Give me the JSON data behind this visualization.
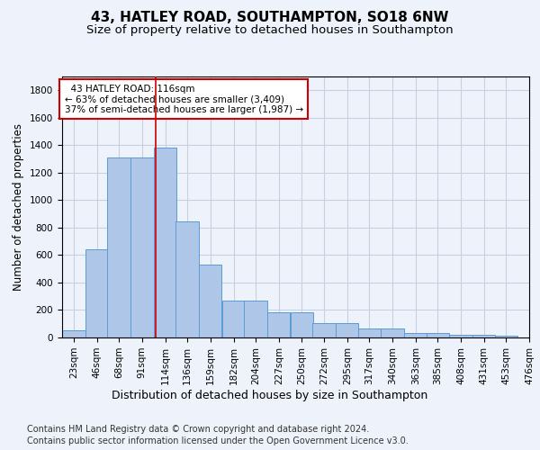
{
  "title_line1": "43, HATLEY ROAD, SOUTHAMPTON, SO18 6NW",
  "title_line2": "Size of property relative to detached houses in Southampton",
  "xlabel": "Distribution of detached houses by size in Southampton",
  "ylabel": "Number of detached properties",
  "footer_line1": "Contains HM Land Registry data © Crown copyright and database right 2024.",
  "footer_line2": "Contains public sector information licensed under the Open Government Licence v3.0.",
  "annotation_line1": "43 HATLEY ROAD: 116sqm",
  "annotation_line2": "← 63% of detached houses are smaller (3,409)",
  "annotation_line3": "37% of semi-detached houses are larger (1,987) →",
  "bar_left_edges": [
    23,
    46,
    68,
    91,
    114,
    136,
    159,
    182,
    204,
    227,
    250,
    272,
    295,
    317,
    340,
    363,
    385,
    408,
    431,
    453
  ],
  "bar_heights": [
    50,
    640,
    1310,
    1310,
    1380,
    845,
    530,
    270,
    270,
    185,
    185,
    105,
    105,
    65,
    65,
    35,
    35,
    20,
    20,
    15
  ],
  "bin_width": 23,
  "categories": [
    "23sqm",
    "46sqm",
    "68sqm",
    "91sqm",
    "114sqm",
    "136sqm",
    "159sqm",
    "182sqm",
    "204sqm",
    "227sqm",
    "250sqm",
    "272sqm",
    "295sqm",
    "317sqm",
    "340sqm",
    "363sqm",
    "385sqm",
    "408sqm",
    "431sqm",
    "453sqm",
    "476sqm"
  ],
  "bar_color": "#aec6e8",
  "bar_edge_color": "#5b9bd5",
  "vline_color": "#cc0000",
  "vline_x": 116,
  "ylim": [
    0,
    1900
  ],
  "yticks": [
    0,
    200,
    400,
    600,
    800,
    1000,
    1200,
    1400,
    1600,
    1800
  ],
  "background_color": "#eef2fb",
  "grid_color": "#c8cfe0",
  "annotation_box_edge_color": "#cc0000",
  "annotation_box_face_color": "#ffffff",
  "title_fontsize": 11,
  "subtitle_fontsize": 9.5,
  "ylabel_fontsize": 8.5,
  "xlabel_fontsize": 9,
  "tick_fontsize": 7.5,
  "annotation_fontsize": 7.5,
  "footer_fontsize": 7
}
